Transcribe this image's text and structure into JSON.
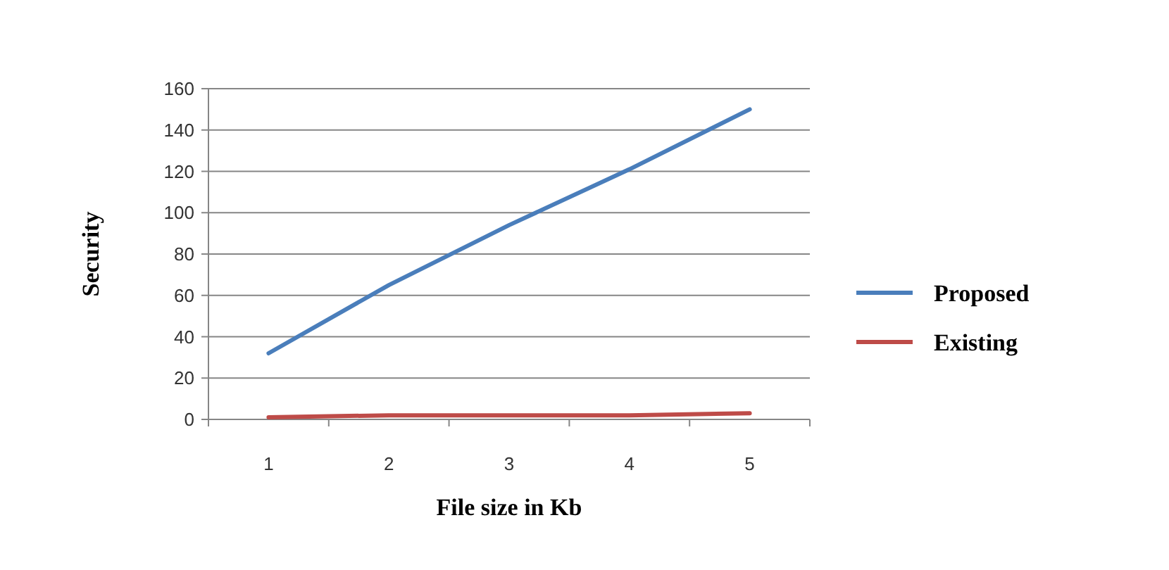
{
  "chart_data": {
    "type": "line",
    "xlabel": "File size in Kb",
    "ylabel": "Security",
    "categories": [
      "1",
      "2",
      "3",
      "4",
      "5"
    ],
    "series": [
      {
        "name": "Proposed",
        "color": "#4a7ebb",
        "values": [
          32,
          65,
          94,
          121,
          150
        ]
      },
      {
        "name": "Existing",
        "color": "#be4b48",
        "values": [
          1,
          2,
          2,
          2,
          3
        ]
      }
    ],
    "ylim": [
      0,
      160
    ],
    "yticks": [
      0,
      20,
      40,
      60,
      80,
      100,
      120,
      140,
      160
    ],
    "grid": "y",
    "legend": "right",
    "marker": "none",
    "line_style": "solid"
  }
}
